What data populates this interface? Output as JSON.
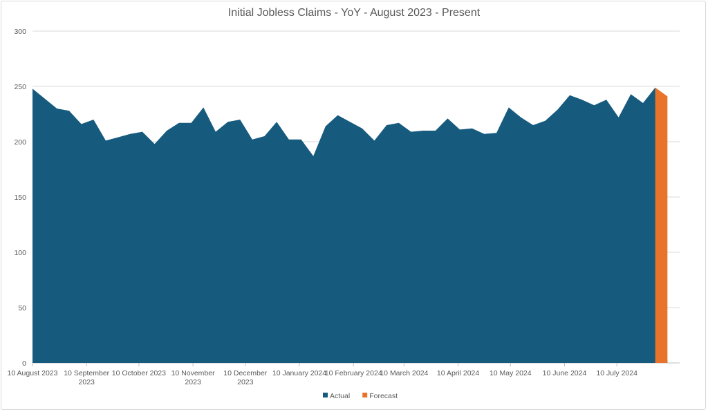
{
  "chart_data": {
    "type": "area",
    "title": "Initial Jobless Claims - YoY - August 2023 - Present",
    "xlabel": "",
    "ylabel": "",
    "ylim": [
      0,
      300
    ],
    "y_ticks": [
      0,
      50,
      100,
      150,
      200,
      250,
      300
    ],
    "grid": true,
    "legend_position": "bottom",
    "x_tick_labels": [
      {
        "date": "2023-08-10",
        "lines": [
          "10 August 2023"
        ]
      },
      {
        "date": "2023-09-10",
        "lines": [
          "10 September",
          "2023"
        ]
      },
      {
        "date": "2023-10-10",
        "lines": [
          "10 October 2023"
        ]
      },
      {
        "date": "2023-11-10",
        "lines": [
          "10 November",
          "2023"
        ]
      },
      {
        "date": "2023-12-10",
        "lines": [
          "10 December",
          "2023"
        ]
      },
      {
        "date": "2024-01-10",
        "lines": [
          "10 January 2024"
        ]
      },
      {
        "date": "2024-02-10",
        "lines": [
          "10 February 2024"
        ]
      },
      {
        "date": "2024-03-10",
        "lines": [
          "10 March 2024"
        ]
      },
      {
        "date": "2024-04-10",
        "lines": [
          "10 April 2024"
        ]
      },
      {
        "date": "2024-05-10",
        "lines": [
          "10 May 2024"
        ]
      },
      {
        "date": "2024-06-10",
        "lines": [
          "10 June 2024"
        ]
      },
      {
        "date": "2024-07-10",
        "lines": [
          "10 July 2024"
        ]
      }
    ],
    "x_range": [
      "2023-08-10",
      "2024-08-15"
    ],
    "series": [
      {
        "name": "Actual",
        "color": "#165b7e",
        "points": [
          [
            "2023-08-10",
            248
          ],
          [
            "2023-08-17",
            239
          ],
          [
            "2023-08-24",
            230
          ],
          [
            "2023-08-31",
            228
          ],
          [
            "2023-09-07",
            216
          ],
          [
            "2023-09-14",
            220
          ],
          [
            "2023-09-21",
            201
          ],
          [
            "2023-09-28",
            204
          ],
          [
            "2023-10-05",
            207
          ],
          [
            "2023-10-12",
            209
          ],
          [
            "2023-10-19",
            198
          ],
          [
            "2023-10-26",
            210
          ],
          [
            "2023-11-02",
            217
          ],
          [
            "2023-11-09",
            217
          ],
          [
            "2023-11-16",
            231
          ],
          [
            "2023-11-23",
            209
          ],
          [
            "2023-11-30",
            218
          ],
          [
            "2023-12-07",
            220
          ],
          [
            "2023-12-14",
            202
          ],
          [
            "2023-12-21",
            205
          ],
          [
            "2023-12-28",
            218
          ],
          [
            "2024-01-04",
            202
          ],
          [
            "2024-01-11",
            202
          ],
          [
            "2024-01-18",
            187
          ],
          [
            "2024-01-25",
            214
          ],
          [
            "2024-02-01",
            224
          ],
          [
            "2024-02-08",
            218
          ],
          [
            "2024-02-15",
            212
          ],
          [
            "2024-02-22",
            201
          ],
          [
            "2024-02-29",
            215
          ],
          [
            "2024-03-07",
            217
          ],
          [
            "2024-03-14",
            209
          ],
          [
            "2024-03-21",
            210
          ],
          [
            "2024-03-28",
            210
          ],
          [
            "2024-04-04",
            221
          ],
          [
            "2024-04-11",
            211
          ],
          [
            "2024-04-18",
            212
          ],
          [
            "2024-04-25",
            207
          ],
          [
            "2024-05-02",
            208
          ],
          [
            "2024-05-09",
            231
          ],
          [
            "2024-05-16",
            222
          ],
          [
            "2024-05-23",
            215
          ],
          [
            "2024-05-30",
            219
          ],
          [
            "2024-06-06",
            229
          ],
          [
            "2024-06-13",
            242
          ],
          [
            "2024-06-20",
            238
          ],
          [
            "2024-06-27",
            233
          ],
          [
            "2024-07-04",
            238
          ],
          [
            "2024-07-11",
            222
          ],
          [
            "2024-07-18",
            243
          ],
          [
            "2024-07-25",
            235
          ],
          [
            "2024-08-01",
            249
          ],
          [
            "2024-08-08",
            0
          ]
        ]
      },
      {
        "name": "Forecast",
        "color": "#e8742c",
        "points": [
          [
            "2024-08-01",
            249
          ],
          [
            "2024-08-08",
            241
          ]
        ]
      }
    ]
  }
}
